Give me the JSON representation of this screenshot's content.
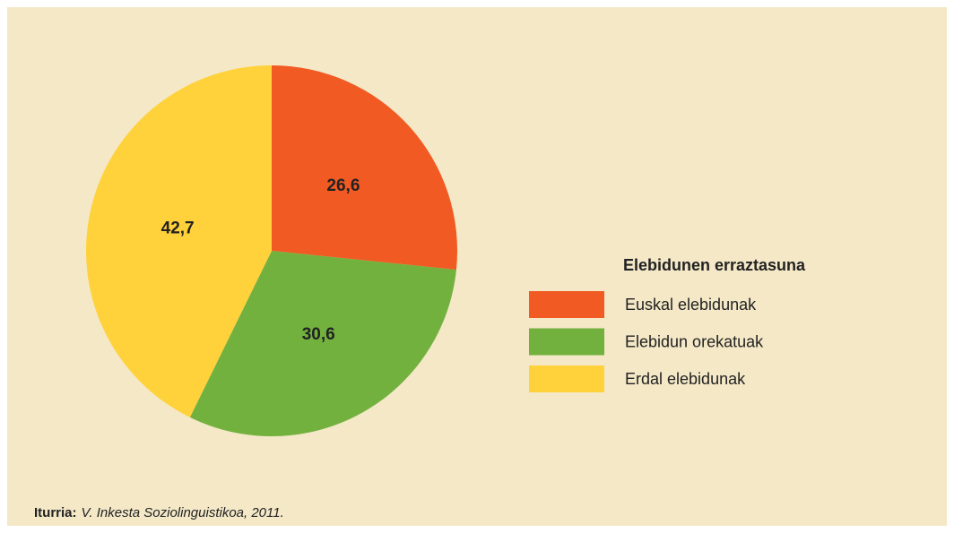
{
  "chart_data": {
    "type": "pie",
    "categories": [
      "Euskal elebidunak",
      "Elebidun orekatuak",
      "Erdal elebidunak"
    ],
    "values": [
      26.6,
      30.6,
      42.7
    ],
    "value_labels": [
      "26,6",
      "30,6",
      "42,7"
    ],
    "colors": [
      "#f15a22",
      "#73b13f",
      "#ffd13b"
    ],
    "legend_title": "Elebidunen erraztasuna",
    "legend": "right"
  },
  "source": {
    "label": "Iturria:",
    "text": "V. Inkesta Soziolinguistikoa, 2011."
  }
}
